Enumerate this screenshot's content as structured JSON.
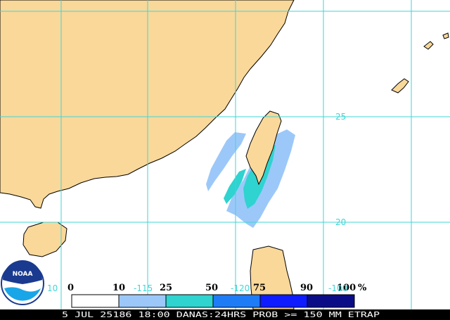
{
  "map": {
    "grid_color": "#3fd6d6",
    "land_color": "#f9d89a",
    "ocean_color": "#ffffff",
    "lat_labels": [
      "25",
      "20"
    ],
    "lon_labels": [
      "-115",
      "-120",
      "-100"
    ],
    "lon_left_label": "10"
  },
  "legend": {
    "ticks": [
      "0",
      "10",
      "25",
      "50",
      "75",
      "90",
      "100"
    ],
    "unit": "%",
    "colors": [
      "#ffffff",
      "#9cc8f9",
      "#2fd3cf",
      "#1e7cf7",
      "#0e1cff",
      "#0b0d87"
    ]
  },
  "logo": {
    "text": "NOAA"
  },
  "status_bar": {
    "text": "5 JUL 25186 18:00 DANAS:24HRS PROB >= 150 MM ETRAP"
  }
}
